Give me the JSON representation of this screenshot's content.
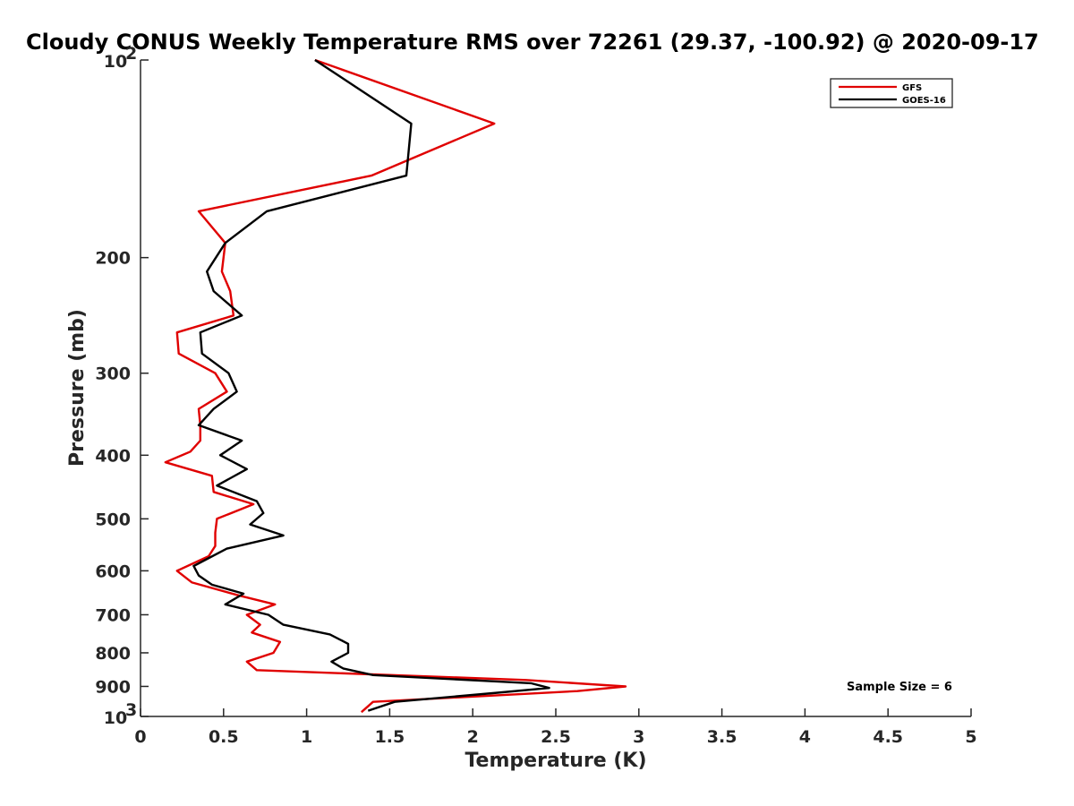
{
  "chart_data": {
    "type": "line",
    "title": "Cloudy CONUS Weekly Temperature RMS over 72261 (29.37, -100.92) @ 2020-09-17",
    "xlabel": "Temperature (K)",
    "ylabel": "Pressure (mb)",
    "xlim": [
      0,
      5
    ],
    "ylim": [
      100,
      1000
    ],
    "y_scale": "log",
    "y_reversed": true,
    "x_ticks": [
      "0",
      "0.5",
      "1",
      "1.5",
      "2",
      "2.5",
      "3",
      "3.5",
      "4",
      "4.5",
      "5"
    ],
    "y_ticks": [
      {
        "value": 100,
        "base": "10",
        "exp": "2"
      },
      {
        "value": 200,
        "label": "200"
      },
      {
        "value": 300,
        "label": "300"
      },
      {
        "value": 400,
        "label": "400"
      },
      {
        "value": 500,
        "label": "500"
      },
      {
        "value": 600,
        "label": "600"
      },
      {
        "value": 700,
        "label": "700"
      },
      {
        "value": 800,
        "label": "800"
      },
      {
        "value": 900,
        "label": "900"
      },
      {
        "value": 1000,
        "base": "10",
        "exp": "3"
      }
    ],
    "legend_position": "top-right",
    "annotation": "Sample Size = 6",
    "series": [
      {
        "name": "GFS",
        "color": "#e00000",
        "points": [
          [
            1.05,
            100
          ],
          [
            2.13,
            125
          ],
          [
            1.39,
            150
          ],
          [
            0.35,
            170
          ],
          [
            0.51,
            190
          ],
          [
            0.49,
            210
          ],
          [
            0.54,
            225
          ],
          [
            0.56,
            245
          ],
          [
            0.22,
            260
          ],
          [
            0.23,
            280
          ],
          [
            0.45,
            300
          ],
          [
            0.52,
            320
          ],
          [
            0.35,
            340
          ],
          [
            0.36,
            360
          ],
          [
            0.36,
            380
          ],
          [
            0.3,
            395
          ],
          [
            0.15,
            410
          ],
          [
            0.43,
            430
          ],
          [
            0.44,
            455
          ],
          [
            0.68,
            475
          ],
          [
            0.46,
            500
          ],
          [
            0.45,
            525
          ],
          [
            0.45,
            550
          ],
          [
            0.41,
            570
          ],
          [
            0.22,
            600
          ],
          [
            0.31,
            625
          ],
          [
            0.6,
            655
          ],
          [
            0.81,
            675
          ],
          [
            0.64,
            700
          ],
          [
            0.72,
            725
          ],
          [
            0.67,
            745
          ],
          [
            0.84,
            770
          ],
          [
            0.8,
            800
          ],
          [
            0.64,
            825
          ],
          [
            0.7,
            850
          ],
          [
            2.32,
            880
          ],
          [
            2.92,
            900
          ],
          [
            2.63,
            915
          ],
          [
            1.4,
            950
          ],
          [
            1.33,
            985
          ]
        ]
      },
      {
        "name": "GOES-16",
        "color": "#000000",
        "points": [
          [
            1.05,
            100
          ],
          [
            1.63,
            125
          ],
          [
            1.6,
            150
          ],
          [
            0.76,
            170
          ],
          [
            0.51,
            190
          ],
          [
            0.4,
            210
          ],
          [
            0.44,
            225
          ],
          [
            0.61,
            245
          ],
          [
            0.36,
            260
          ],
          [
            0.37,
            280
          ],
          [
            0.53,
            300
          ],
          [
            0.58,
            320
          ],
          [
            0.44,
            340
          ],
          [
            0.35,
            360
          ],
          [
            0.61,
            380
          ],
          [
            0.48,
            400
          ],
          [
            0.64,
            420
          ],
          [
            0.46,
            445
          ],
          [
            0.7,
            470
          ],
          [
            0.74,
            490
          ],
          [
            0.66,
            510
          ],
          [
            0.86,
            530
          ],
          [
            0.52,
            555
          ],
          [
            0.32,
            590
          ],
          [
            0.35,
            610
          ],
          [
            0.43,
            630
          ],
          [
            0.62,
            650
          ],
          [
            0.51,
            675
          ],
          [
            0.77,
            700
          ],
          [
            0.86,
            725
          ],
          [
            1.14,
            750
          ],
          [
            1.25,
            775
          ],
          [
            1.25,
            800
          ],
          [
            1.15,
            825
          ],
          [
            1.22,
            845
          ],
          [
            1.4,
            865
          ],
          [
            2.35,
            890
          ],
          [
            2.46,
            905
          ],
          [
            2.15,
            920
          ],
          [
            1.53,
            950
          ],
          [
            1.37,
            980
          ]
        ]
      }
    ]
  }
}
